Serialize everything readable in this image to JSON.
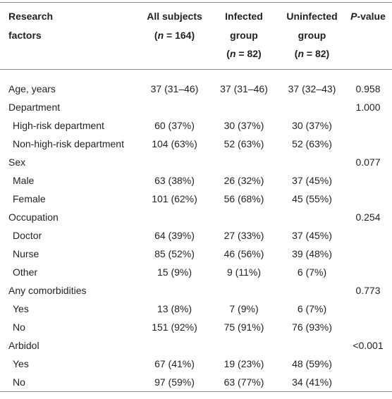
{
  "header": {
    "cells": [
      {
        "lines": [
          [
            {
              "text": "Research"
            }
          ],
          [
            {
              "text": "factors"
            }
          ]
        ]
      },
      {
        "lines": [
          [
            {
              "text": "All subjects"
            }
          ],
          [
            {
              "text": "("
            },
            {
              "text": "n",
              "italic": true
            },
            {
              "text": " = 164)"
            }
          ]
        ]
      },
      {
        "lines": [
          [
            {
              "text": "Infected"
            }
          ],
          [
            {
              "text": "group"
            }
          ],
          [
            {
              "text": "("
            },
            {
              "text": "n",
              "italic": true
            },
            {
              "text": " = 82)"
            }
          ]
        ]
      },
      {
        "lines": [
          [
            {
              "text": "Uninfected"
            }
          ],
          [
            {
              "text": "group"
            }
          ],
          [
            {
              "text": "("
            },
            {
              "text": "n",
              "italic": true
            },
            {
              "text": " = 82)"
            }
          ]
        ]
      },
      {
        "lines": [
          [
            {
              "text": "P",
              "italic": true
            },
            {
              "text": "-value"
            }
          ]
        ]
      }
    ]
  },
  "groups": [
    {
      "label": "Age, years",
      "values": [
        "37 (31–46)",
        "37 (31–46)",
        "37 (32–43)"
      ],
      "p": "0.958"
    },
    {
      "label": "Department",
      "p": "1.000",
      "items": [
        {
          "label": "High-risk department",
          "values": [
            "60 (37%)",
            "30 (37%)",
            "30 (37%)"
          ]
        },
        {
          "label": "Non-high-risk department",
          "values": [
            "104 (63%)",
            "52 (63%)",
            "52 (63%)"
          ]
        }
      ]
    },
    {
      "label": "Sex",
      "p": "0.077",
      "items": [
        {
          "label": "Male",
          "values": [
            "63 (38%)",
            "26 (32%)",
            "37 (45%)"
          ]
        },
        {
          "label": "Female",
          "values": [
            "101 (62%)",
            "56 (68%)",
            "45 (55%)"
          ]
        }
      ]
    },
    {
      "label": "Occupation",
      "p": "0.254",
      "items": [
        {
          "label": "Doctor",
          "values": [
            "64 (39%)",
            "27 (33%)",
            "37 (45%)"
          ]
        },
        {
          "label": "Nurse",
          "values": [
            "85 (52%)",
            "46 (56%)",
            "39 (48%)"
          ]
        },
        {
          "label": "Other",
          "values": [
            "15 (9%)",
            "9 (11%)",
            "6 (7%)"
          ]
        }
      ]
    },
    {
      "label": "Any comorbidities",
      "p": "0.773",
      "items": [
        {
          "label": "Yes",
          "values": [
            "13 (8%)",
            "7 (9%)",
            "6 (7%)"
          ]
        },
        {
          "label": "No",
          "values": [
            "151 (92%)",
            "75 (91%)",
            "76 (93%)"
          ]
        }
      ]
    },
    {
      "label": "Arbidol",
      "p": "<0.001",
      "items": [
        {
          "label": "Yes",
          "values": [
            "67 (41%)",
            "19 (23%)",
            "48 (59%)"
          ]
        },
        {
          "label": "No",
          "values": [
            "97 (59%)",
            "63 (77%)",
            "34 (41%)"
          ]
        }
      ]
    }
  ]
}
